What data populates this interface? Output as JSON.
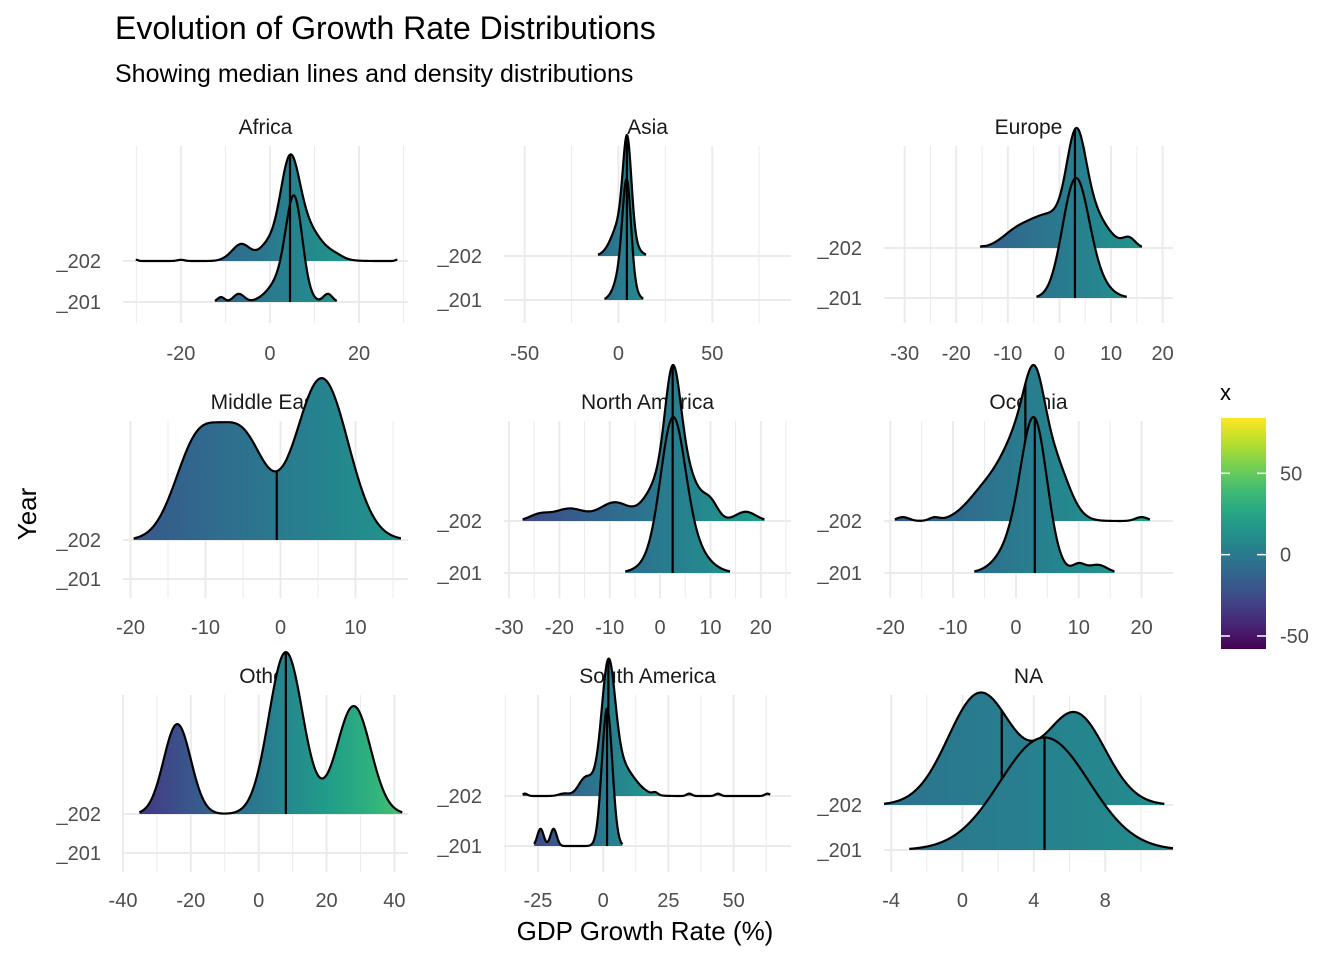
{
  "chart_data": {
    "type": "ridgeline",
    "title": "Evolution of Growth Rate Distributions",
    "subtitle": "Showing median lines and density distributions",
    "xlabel": "GDP Growth Rate (%)",
    "ylabel": "Year",
    "legend": {
      "title": "x",
      "placement": "right",
      "breaks": [
        50,
        0,
        -50
      ],
      "range": [
        -58,
        84
      ],
      "colormap": "viridis"
    },
    "grid": true,
    "panels": [
      {
        "name": "Africa",
        "xlim": [
          -33,
          31
        ],
        "xticks": [
          -20,
          0,
          20
        ],
        "yticks": [
          "_202",
          "_201"
        ],
        "scale": 2.6,
        "ridges": [
          {
            "label": "_202",
            "median": 4.5,
            "components": [
              [
                0.32,
                4.5,
                2.0
              ],
              [
                0.22,
                6.0,
                4.5
              ],
              [
                0.08,
                -6.5,
                2.0
              ],
              [
                0.02,
                -1,
                1.5
              ],
              [
                0.006,
                -30,
                0.4
              ],
              [
                0.006,
                -20,
                0.8
              ],
              [
                0.004,
                -10,
                1.5
              ],
              [
                0.006,
                28.5,
                0.4
              ],
              [
                0.01,
                15,
                1.5
              ]
            ]
          },
          {
            "label": "_201",
            "median": 4.5,
            "components": [
              [
                0.55,
                5.5,
                1.8
              ],
              [
                0.15,
                3,
                3
              ],
              [
                0.05,
                -7,
                1.2
              ],
              [
                0.03,
                -11,
                0.8
              ],
              [
                0.05,
                13,
                1
              ]
            ]
          }
        ]
      },
      {
        "name": "Asia",
        "xlim": [
          -61,
          92
        ],
        "xticks": [
          -50,
          0,
          50
        ],
        "yticks": [
          "_202",
          "_201"
        ],
        "scale": 2.75,
        "ridges": [
          {
            "label": "_202",
            "median": 4.5,
            "components": [
              [
                0.48,
                4.7,
                2.2
              ],
              [
                0.2,
                2,
                5
              ],
              [
                0.006,
                -54,
                0.5
              ],
              [
                0.004,
                -33,
                0.5
              ],
              [
                0.004,
                -25,
                1
              ],
              [
                0.004,
                -20,
                1
              ],
              [
                0.003,
                24,
                0.6
              ],
              [
                0.003,
                38,
                0.6
              ],
              [
                0.003,
                80,
                0.5
              ]
            ]
          },
          {
            "label": "_201",
            "median": 4.5,
            "components": [
              [
                0.7,
                4.5,
                2.2
              ],
              [
                0.3,
                3,
                4
              ]
            ]
          }
        ]
      },
      {
        "name": "Europe",
        "xlim": [
          -34,
          22
        ],
        "xticks": [
          -30,
          -20,
          -10,
          0,
          10,
          20
        ],
        "yticks": [
          "_202",
          "_201"
        ],
        "scale": 2.4,
        "ridges": [
          {
            "label": "_202",
            "median": 3,
            "components": [
              [
                0.35,
                3.2,
                1.8
              ],
              [
                0.2,
                5,
                3.5
              ],
              [
                0.12,
                -2.5,
                3
              ],
              [
                0.08,
                -8,
                3
              ],
              [
                0.04,
                13.5,
                1.2
              ],
              [
                0.005,
                -29,
                0.3
              ],
              [
                0.003,
                -15,
                0.4
              ]
            ]
          },
          {
            "label": "_201",
            "median": 3,
            "components": [
              [
                0.85,
                3,
                2.5
              ],
              [
                0.15,
                6,
                3
              ]
            ]
          }
        ]
      },
      {
        "name": "Middle East",
        "xlim": [
          -21,
          17
        ],
        "xticks": [
          -20,
          -10,
          0,
          10
        ],
        "yticks": [
          "_202",
          "_201"
        ],
        "scale": 4.15,
        "ridges": [
          {
            "label": "_202",
            "median": -0.5,
            "components": [
              [
                0.5,
                5.5,
                3.5
              ],
              [
                0.3,
                -11,
                3
              ],
              [
                0.3,
                -5,
                3
              ]
            ]
          }
        ]
      },
      {
        "name": "North America",
        "xlim": [
          -31,
          26
        ],
        "xticks": [
          -30,
          -20,
          -10,
          0,
          10,
          20
        ],
        "yticks": [
          "_202",
          "_201"
        ],
        "scale": 3.0,
        "ridges": [
          {
            "label": "_202",
            "median": 2.5,
            "components": [
              [
                0.3,
                2.5,
                1.5
              ],
              [
                0.2,
                4,
                3
              ],
              [
                0.08,
                -1,
                2.5
              ],
              [
                0.06,
                -9,
                3
              ],
              [
                0.04,
                -18,
                3
              ],
              [
                0.02,
                -24,
                2
              ],
              [
                0.05,
                10,
                1.5
              ],
              [
                0.03,
                17,
                2
              ]
            ]
          },
          {
            "label": "_201",
            "median": 2.5,
            "components": [
              [
                0.7,
                2.5,
                2.3
              ],
              [
                0.3,
                3.5,
                4
              ]
            ]
          }
        ]
      },
      {
        "name": "Oceania",
        "xlim": [
          -21,
          25
        ],
        "xticks": [
          -20,
          -10,
          0,
          10,
          20
        ],
        "yticks": [
          "_202",
          "_201"
        ],
        "scale": 3.0,
        "ridges": [
          {
            "label": "_202",
            "median": 1.5,
            "components": [
              [
                0.4,
                2,
                3.5
              ],
              [
                0.2,
                3,
                1.5
              ],
              [
                0.1,
                -5,
                3
              ],
              [
                0.08,
                7,
                2
              ],
              [
                0.015,
                -18,
                1
              ],
              [
                0.012,
                -13,
                0.8
              ],
              [
                0.015,
                20,
                1
              ]
            ]
          },
          {
            "label": "_201",
            "median": 3,
            "components": [
              [
                0.6,
                3,
                2
              ],
              [
                0.2,
                1,
                3
              ],
              [
                0.04,
                10,
                1
              ],
              [
                0.04,
                13,
                1.5
              ]
            ]
          }
        ]
      },
      {
        "name": "Other",
        "xlim": [
          -40,
          44
        ],
        "xticks": [
          -40,
          -20,
          0,
          20,
          40
        ],
        "yticks": [
          "_202",
          "_201"
        ],
        "scale": 4.15,
        "ridges": [
          {
            "label": "_202",
            "median": 8,
            "components": [
              [
                0.45,
                8,
                5
              ],
              [
                0.25,
                -24,
                4
              ],
              [
                0.3,
                28,
                5
              ]
            ]
          }
        ]
      },
      {
        "name": "South America",
        "xlim": [
          -38,
          72
        ],
        "xticks": [
          -25,
          0,
          25,
          50
        ],
        "yticks": [
          "_202",
          "_201"
        ],
        "scale": 2.75,
        "ridges": [
          {
            "label": "_202",
            "median": 2,
            "components": [
              [
                0.45,
                2,
                2.5
              ],
              [
                0.15,
                5,
                6
              ],
              [
                0.06,
                -7,
                2.5
              ],
              [
                0.01,
                -15,
                2
              ],
              [
                0.01,
                -30,
                1
              ],
              [
                0.01,
                20,
                1
              ],
              [
                0.01,
                33,
                1
              ],
              [
                0.01,
                44,
                1
              ],
              [
                0.01,
                63,
                1
              ]
            ]
          },
          {
            "label": "_201",
            "median": 1.5,
            "components": [
              [
                0.8,
                1.5,
                2
              ],
              [
                0.1,
                -24,
                1.2
              ],
              [
                0.1,
                -19,
                1.2
              ]
            ]
          }
        ]
      },
      {
        "name": "NA",
        "xlim": [
          -4.4,
          11.8
        ],
        "xticks": [
          -4,
          0,
          4,
          8
        ],
        "yticks": [
          "_202",
          "_201"
        ],
        "scale": 2.5,
        "ridges": [
          {
            "label": "_202",
            "median": 2.2,
            "components": [
              [
                0.55,
                1,
                1.8
              ],
              [
                0.45,
                6.3,
                1.7
              ]
            ]
          },
          {
            "label": "_201",
            "median": 4.6,
            "components": [
              [
                1.0,
                4.6,
                2.5
              ]
            ]
          }
        ]
      }
    ]
  }
}
